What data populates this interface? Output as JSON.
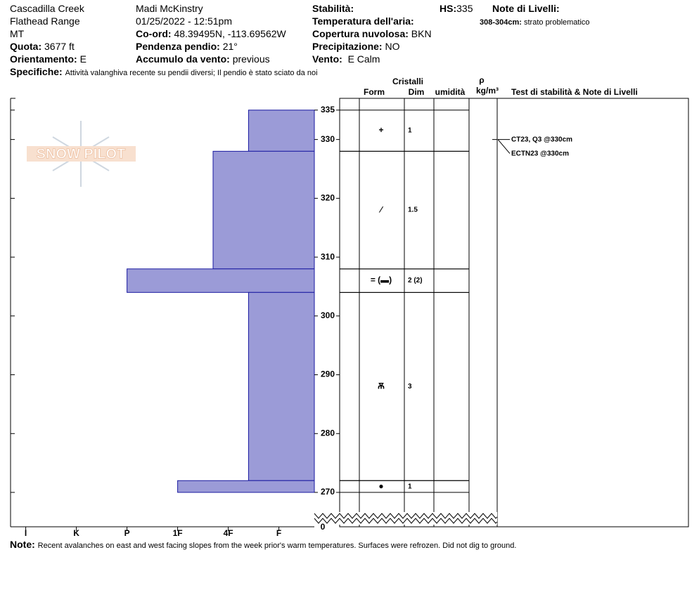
{
  "header": {
    "location": "Cascadilla Creek",
    "range": "Flathead Range",
    "state": "MT",
    "elevation_label": "Quota:",
    "elevation": "3677 ft",
    "aspect_label": "Orientamento:",
    "aspect": "E",
    "observer": "Madi  McKinstry",
    "datetime": "01/25/2022 - 12:51pm",
    "coord_label": "Co-ord:",
    "coord": "48.39495N, -113.69562W",
    "slope_label": "Pendenza pendio:",
    "slope": "21°",
    "wind_loading_label": "Accumulo da vento:",
    "wind_loading": "previous",
    "stability_label": "Stabilità:",
    "air_temp_label": "Temperatura dell'aria:",
    "cloud_label": "Copertura nuvolosa:",
    "cloud": "BKN",
    "precip_label": "Precipitazione:",
    "precip": "NO",
    "wind_label": "Vento:",
    "wind": "E Calm",
    "hs_label": "HS:",
    "hs": "335",
    "layer_notes_label": "Note di Livelli:",
    "layer_note_range": "308-304cm:",
    "layer_note": "strato problematico",
    "specifics_label": "Specifiche:",
    "specifics": "Attività valanghiva recente su pendii diversi; Il pendio è stato sciato da noi"
  },
  "column_headers": {
    "crystals": "Cristalli",
    "form": "Form",
    "dim": "Dim",
    "moisture": "umidità",
    "density_symbol": "ρ",
    "density_unit": "kg/m³",
    "tests": "Test di stabilità & Note di Livelli"
  },
  "logo": "SNOW PILOT",
  "chart_data": {
    "type": "snow-profile",
    "color": "#9b9bd7",
    "ylim": [
      264.15,
      337
    ],
    "yticks": [
      270,
      280,
      290,
      300,
      310,
      320,
      330,
      335
    ],
    "y_break_label": 0,
    "xlim": [
      6.3,
      0.3
    ],
    "xticks": [
      {
        "value": 6,
        "label": "I"
      },
      {
        "value": 5,
        "label": "K"
      },
      {
        "value": 4,
        "label": "P"
      },
      {
        "value": 3,
        "label": "1F"
      },
      {
        "value": 2,
        "label": "4F"
      },
      {
        "value": 1,
        "label": "F"
      }
    ],
    "layers": [
      {
        "top": 335,
        "bottom": 328,
        "hardness": 1.6,
        "form": "+",
        "dim": "1"
      },
      {
        "top": 328,
        "bottom": 308,
        "hardness": 2.3,
        "form": "⁄",
        "dim": "1.5"
      },
      {
        "top": 308,
        "bottom": 304,
        "hardness": 4,
        "form": "= (▬)",
        "dim": "2 (2)"
      },
      {
        "top": 304,
        "bottom": 272,
        "hardness": 1.6,
        "form": "Ѫ",
        "dim": "3"
      },
      {
        "top": 272,
        "bottom": 270,
        "hardness": 3,
        "form": "●",
        "dim": "1"
      }
    ],
    "tests": [
      {
        "height": 330,
        "labels": [
          "CT23, Q3 @330cm",
          "ECTN23 @330cm"
        ]
      }
    ]
  },
  "note": {
    "label": "Note:",
    "text": "Recent avalanches on east and west facing slopes from the week prior's warm temperatures. Surfaces were refrozen. Did not dig to ground."
  }
}
